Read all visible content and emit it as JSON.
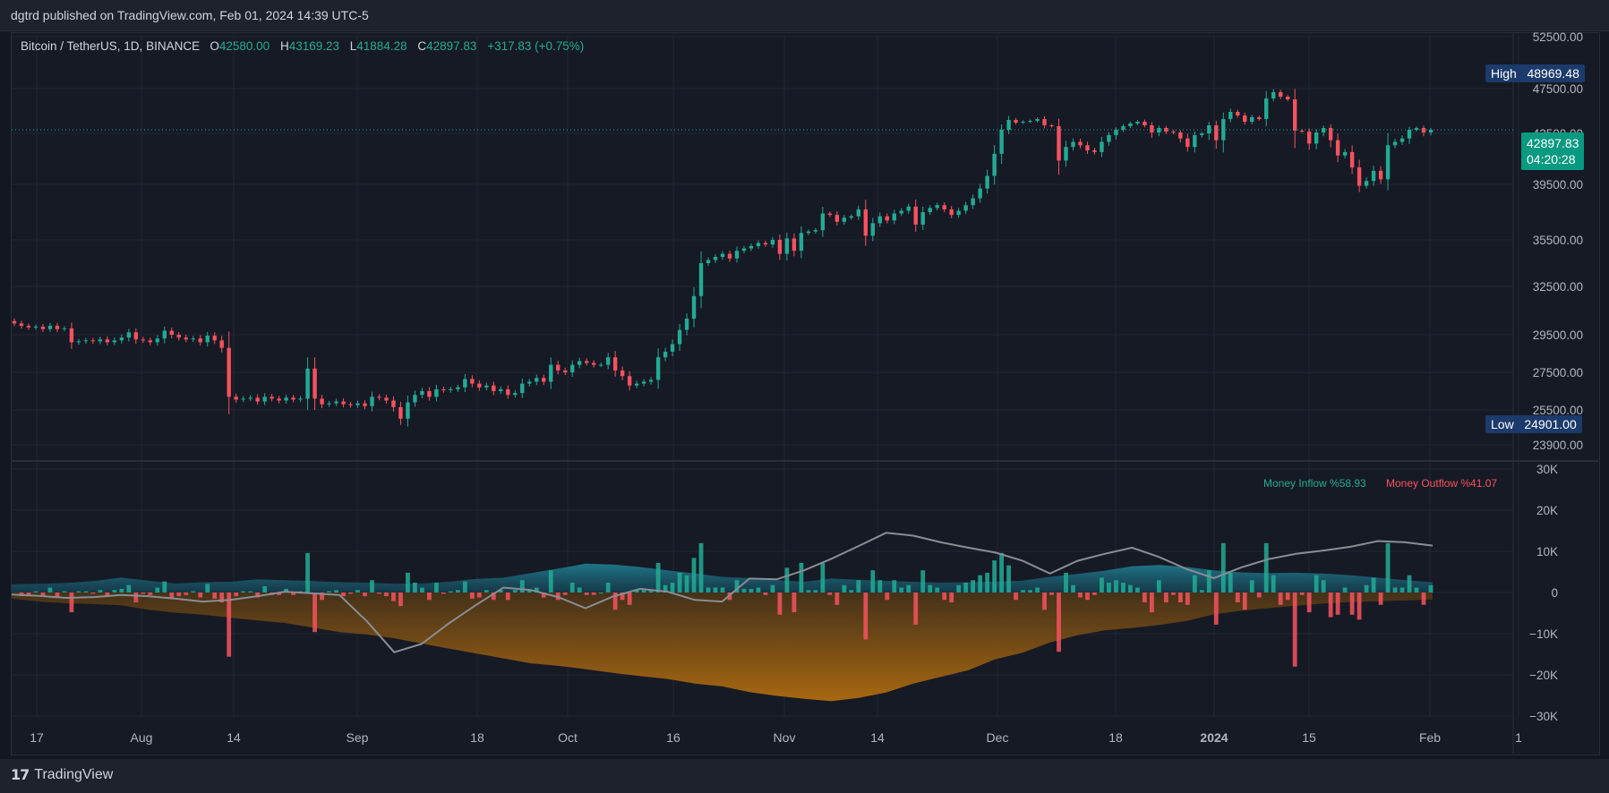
{
  "header": {
    "published": "dgtrd published on TradingView.com, Feb 01, 2024 14:39 UTC-5"
  },
  "legend": {
    "symbol": "Bitcoin / TetherUS, 1D, BINANCE",
    "o_label": "O",
    "o_value": "42580.00",
    "h_label": "H",
    "h_value": "43169.23",
    "l_label": "L",
    "l_value": "41884.28",
    "c_label": "C",
    "c_value": "42897.83",
    "change": "+317.83 (+0.75%)"
  },
  "tags": {
    "high_label": "High",
    "high_value": "48969.48",
    "low_label": "Low",
    "low_value": "24901.00",
    "last_price": "42897.83",
    "countdown": "04:20:28"
  },
  "mfi_legend": {
    "inflow": "Money Inflow %58.93",
    "outflow": "Money Outflow %41.07"
  },
  "footer": {
    "logo_text": "TradingView"
  },
  "colors": {
    "up": "#22ab94",
    "down": "#f7525f",
    "inflow": "#1a7a8c",
    "outflow": "#b86a0f",
    "line": "#8a8d96",
    "background": "#161a25",
    "grid": "#232733"
  },
  "chart_data": [
    {
      "type": "candlestick",
      "title": "",
      "price_axis_ticks": [
        "52500.00",
        "47500.00",
        "42500.00",
        "39500.00",
        "35500.00",
        "32500.00",
        "29500.00",
        "27500.00",
        "25500.00",
        "23900.00"
      ],
      "time_axis_ticks": [
        "17",
        "Aug",
        "14",
        "Sep",
        "18",
        "Oct",
        "16",
        "Nov",
        "14",
        "Dec",
        "18",
        "2024",
        "15",
        "Feb",
        "1"
      ],
      "ylim": [
        23600,
        53500
      ],
      "close_series": {
        "name": "",
        "values": [
          30200,
          30050,
          29950,
          30000,
          29850,
          30050,
          29850,
          29900,
          29100,
          29150,
          29200,
          29150,
          29250,
          29100,
          29200,
          29350,
          29650,
          29250,
          29200,
          29100,
          29300,
          29750,
          29500,
          29350,
          29250,
          29300,
          29100,
          29450,
          29200,
          28800,
          26200,
          26050,
          26100,
          26150,
          25950,
          26200,
          26100,
          26000,
          26150,
          26050,
          26100,
          27700,
          26100,
          25800,
          25850,
          25950,
          25800,
          25750,
          25850,
          25700,
          26200,
          26150,
          26000,
          25650,
          25100,
          25900,
          26300,
          26500,
          26200,
          26600,
          26550,
          26600,
          26700,
          27150,
          26900,
          26700,
          26800,
          26500,
          26600,
          26300,
          26400,
          26900,
          27000,
          27200,
          27000,
          27900,
          27600,
          27500,
          27900,
          28100,
          28000,
          27900,
          27900,
          28300,
          27600,
          27300,
          26800,
          26900,
          27000,
          27100,
          28300,
          28600,
          29000,
          29800,
          30500,
          31900,
          34000,
          34200,
          34400,
          34600,
          34300,
          34800,
          34950,
          35100,
          35300,
          35200,
          35500,
          34600,
          35600,
          34800,
          36000,
          36100,
          36200,
          37400,
          37300,
          36800,
          37100,
          37200,
          37700,
          35800,
          36700,
          37200,
          36900,
          37400,
          37600,
          37900,
          36600,
          37500,
          37800,
          38000,
          37700,
          37300,
          37600,
          38000,
          38500,
          39200,
          40000,
          41300,
          42900,
          44000,
          43700,
          43800,
          43900,
          44100,
          43400,
          43300,
          40900,
          41700,
          42000,
          41800,
          41500,
          41400,
          42000,
          42400,
          42900,
          43300,
          43600,
          43800,
          43400,
          42600,
          43100,
          42700,
          42600,
          42200,
          41700,
          42400,
          42500,
          43400,
          42100,
          44100,
          44900,
          44500,
          43800,
          44300,
          44100,
          46400,
          47100,
          46600,
          46300,
          42800,
          42700,
          41900,
          42600,
          43100,
          42100,
          41200,
          41400,
          40500,
          39400,
          39700,
          40300,
          39800,
          41800,
          42000,
          42200,
          42900,
          43100,
          42600,
          42897
        ]
      }
    },
    {
      "type": "bar",
      "title": "",
      "axis_ticks": [
        "30K",
        "20K",
        "10K",
        "0",
        "−10K",
        "−20K",
        "−30K"
      ],
      "ylim": [
        -30000,
        30000
      ],
      "series": [
        {
          "name": "Money Inflow",
          "values": [
            2000,
            2100,
            2300,
            2800,
            3600,
            2900,
            2200,
            2500,
            2600,
            3200,
            3000,
            2800,
            2500,
            2400,
            2100,
            2200,
            2600,
            3300,
            3600,
            4700,
            5800,
            7000,
            6800,
            6200,
            5400,
            4600,
            3800,
            3500,
            3000,
            2600,
            3400,
            3100,
            2800,
            2600,
            2400,
            2500,
            2600,
            2900,
            3800,
            4500,
            5300,
            6400,
            6700,
            6200,
            5400,
            4900,
            4700,
            4800,
            4600,
            4200,
            3600,
            3000,
            2500
          ]
        },
        {
          "name": "Money Outflow",
          "values": [
            -1500,
            -2200,
            -2600,
            -2800,
            -3100,
            -4200,
            -4900,
            -5400,
            -6100,
            -6800,
            -7400,
            -8500,
            -9600,
            -10200,
            -11100,
            -12400,
            -13600,
            -14800,
            -16000,
            -17200,
            -17800,
            -18600,
            -19500,
            -20300,
            -21000,
            -22100,
            -22800,
            -24200,
            -25100,
            -25800,
            -26400,
            -25600,
            -24300,
            -22100,
            -20500,
            -18900,
            -16200,
            -14600,
            -12100,
            -10400,
            -9200,
            -8600,
            -7900,
            -6900,
            -5300,
            -4400,
            -3800,
            -3200,
            -2700,
            -2300,
            -2100,
            -1900,
            -1700
          ]
        },
        {
          "name": "Money Flow Line",
          "values": [
            -500,
            -800,
            -1300,
            -1100,
            -600,
            -900,
            -1500,
            -2200,
            -1800,
            -900,
            200,
            -200,
            -600,
            -7000,
            -14500,
            -12500,
            -7500,
            -3000,
            1200,
            600,
            -1100,
            -3800,
            -1000,
            900,
            200,
            -1800,
            -2200,
            3400,
            3200,
            5400,
            8200,
            11300,
            14500,
            13800,
            12200,
            10900,
            9700,
            7700,
            4600,
            7700,
            9400,
            10900,
            8600,
            5700,
            3500,
            6100,
            8100,
            9400,
            10200,
            11100,
            12500,
            12200,
            11400
          ]
        }
      ]
    }
  ]
}
